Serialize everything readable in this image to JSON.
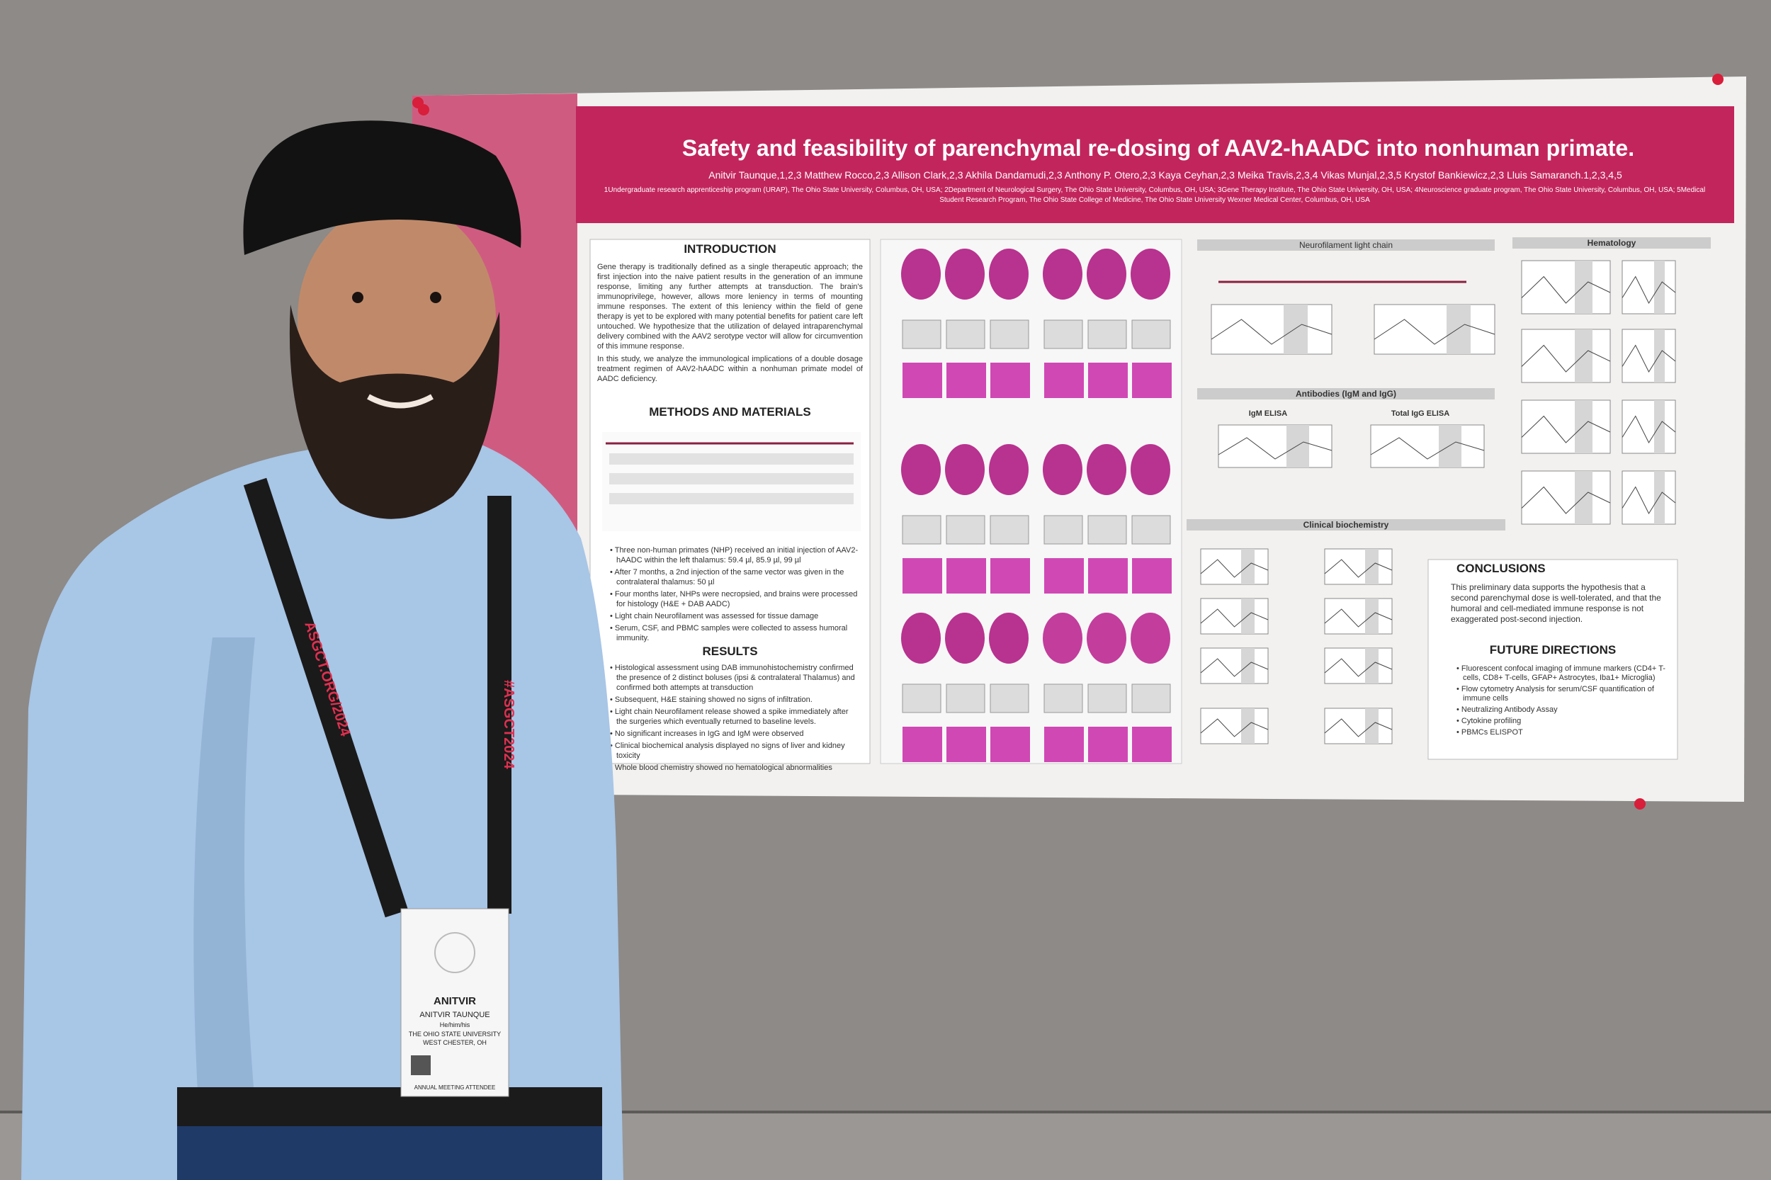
{
  "poster": {
    "title": "Safety and feasibility of parenchymal re-dosing of AAV2-hAADC into nonhuman primate.",
    "authors": "Anitvir Taunque,1,2,3 Matthew Rocco,2,3 Allison Clark,2,3 Akhila Dandamudi,2,3 Anthony P. Otero,2,3 Kaya Ceyhan,2,3 Meika Travis,2,3,4 Vikas Munjal,2,3,5 Krystof Bankiewicz,2,3 Lluis Samaranch.1,2,3,4,5",
    "affiliations": "1Undergraduate research apprenticeship program (URAP), The Ohio State University, Columbus, OH, USA; 2Department of Neurological Surgery, The Ohio State University, Columbus, OH, USA; 3Gene Therapy Institute, The Ohio State University, OH, USA; 4Neuroscience graduate program, The Ohio State University, Columbus, OH, USA; 5Medical Student Research Program, The Ohio State College of Medicine, The Ohio State University Wexner Medical Center, Columbus, OH, USA",
    "introduction": {
      "heading": "INTRODUCTION",
      "paragraphs": [
        "Gene therapy is traditionally defined as a single therapeutic approach; the first injection into the naive patient results in the generation of an immune response, limiting any further attempts at transduction. The brain's immunoprivilege, however, allows more leniency in terms of mounting immune responses. The extent of this leniency within the field of gene therapy is yet to be explored with many potential benefits for patient care left untouched. We hypothesize that the utilization of delayed intraparenchymal delivery combined with the AAV2 serotype vector will allow for circumvention of this immune response.",
        "In this study, we analyze the immunological implications of a double dosage treatment regimen of AAV2-hAADC within a nonhuman primate model of AADC deficiency."
      ]
    },
    "methods": {
      "heading": "METHODS AND MATERIALS",
      "bullets": [
        "Three non-human primates (NHP) received an initial injection of AAV2-hAADC within the left thalamus: 59.4 µl, 85.9 µl, 99 µl",
        "After 7 months, a 2nd injection of the same vector was given in the contralateral thalamus: 50 µl",
        "Four months later, NHPs were necropsied, and brains were processed for histology (H&E + DAB AADC)",
        "Light chain Neurofilament was assessed for tissue damage",
        "Serum, CSF, and PBMC samples were collected to assess humoral immunity."
      ]
    },
    "results": {
      "heading": "RESULTS",
      "bullets": [
        "Histological assessment using DAB immunohistochemistry confirmed the presence of 2 distinct boluses (ipsi & contralateral Thalamus) and confirmed both attempts at transduction",
        "Subsequent, H&E staining showed no signs of infiltration.",
        "Light chain Neurofilament release showed a spike immediately after the surgeries which eventually returned to baseline levels.",
        "No significant increases in IgG and IgM were observed",
        "Clinical biochemical analysis displayed no signs of liver and kidney toxicity",
        "Whole blood chemistry showed no hematological abnormalities"
      ]
    },
    "figures": {
      "neurofilament": "Neurofilament light chain",
      "antibodies": "Antibodies (IgM and IgG)",
      "igm": "IgM ELISA",
      "igg": "Total IgG ELISA",
      "biochemistry": "Clinical biochemistry",
      "hematology": "Hematology"
    },
    "conclusions": {
      "heading": "CONCLUSIONS",
      "text": "This preliminary data supports the hypothesis that a second parenchymal dose is well-tolerated, and that the humoral and cell-mediated immune response is not exaggerated post-second injection."
    },
    "future": {
      "heading": "FUTURE DIRECTIONS",
      "bullets": [
        "Fluorescent confocal imaging of immune markers (CD4+ T-cells, CD8+ T-cells, GFAP+ Astrocytes, Iba1+ Microglia)",
        "Flow cytometry Analysis for serum/CSF quantification of immune cells",
        "Neutralizing Antibody Assay",
        "Cytokine profiling",
        "PBMCs ELISPOT"
      ]
    }
  },
  "badge": {
    "first": "ANITVIR",
    "full": "ANITVIR TAUNQUE",
    "pronouns": "He/him/his",
    "org": "THE OHIO STATE UNIVERSITY",
    "city": "WEST CHESTER, OH",
    "type": "ANNUAL MEETING ATTENDEE"
  },
  "lanyard": [
    "ASGCT.ORG/2024",
    "#ASGCT2024"
  ]
}
